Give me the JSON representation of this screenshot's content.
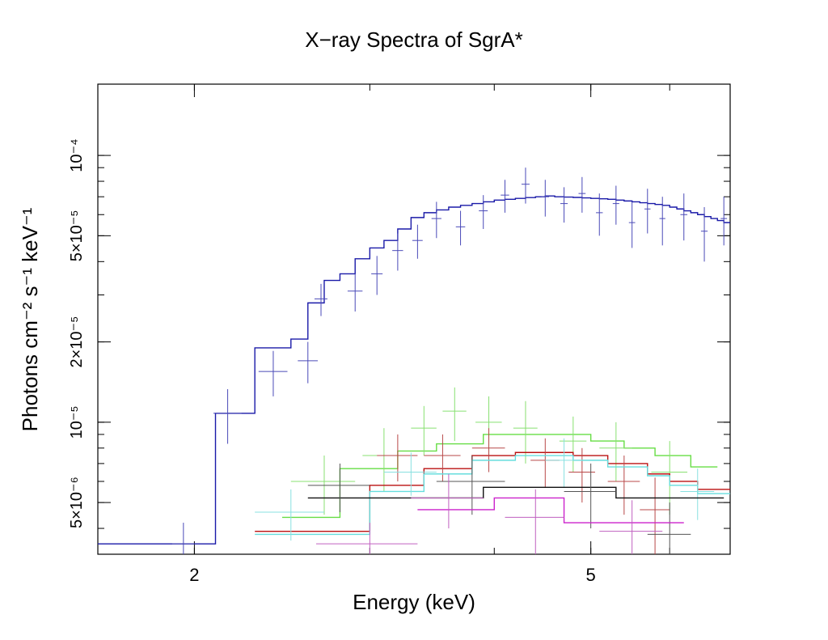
{
  "chart_data": {
    "type": "line",
    "title": "X−ray Spectra of SgrA*",
    "xlabel": "Energy (keV)",
    "ylabel": "Photons cm⁻² s⁻¹ keV⁻¹",
    "xscale": "log",
    "yscale": "log",
    "xlim": [
      1.6,
      6.9
    ],
    "ylim": [
      3.2e-06,
      0.000185
    ],
    "x_ticks": [
      {
        "value": 2,
        "label": "2"
      },
      {
        "value": 5,
        "label": "5"
      }
    ],
    "y_ticks": [
      {
        "value": 5e-06,
        "label": "5×10⁻⁶"
      },
      {
        "value": 1e-05,
        "label": "10⁻⁵"
      },
      {
        "value": 2e-05,
        "label": "2×10⁻⁵"
      },
      {
        "value": 5e-05,
        "label": "5×10⁻⁵"
      },
      {
        "value": 0.0001,
        "label": "10⁻⁴"
      }
    ],
    "grid": false,
    "legend": "none",
    "series": [
      {
        "name": "blue model",
        "kind": "step",
        "color": "#1a1aa8",
        "edges": [
          1.6,
          1.95,
          2.1,
          2.3,
          2.5,
          2.6,
          2.7,
          2.8,
          2.9,
          3.0,
          3.1,
          3.2,
          3.3,
          3.4,
          3.5,
          3.6,
          3.7,
          3.8,
          3.9,
          4.0,
          4.1,
          4.2,
          4.3,
          4.4,
          4.5,
          4.6,
          4.7,
          4.8,
          4.9,
          5.0,
          5.1,
          5.2,
          5.3,
          5.4,
          5.5,
          5.6,
          5.7,
          5.8,
          5.9,
          6.0,
          6.1,
          6.2,
          6.3,
          6.4,
          6.5,
          6.6,
          6.7,
          6.8,
          6.9
        ],
        "values": [
          3.5e-06,
          3.5e-06,
          1.08e-05,
          1.9e-05,
          2.05e-05,
          2.8e-05,
          3.4e-05,
          3.6e-05,
          4.1e-05,
          4.5e-05,
          4.8e-05,
          5.3e-05,
          5.85e-05,
          6.1e-05,
          6.25e-05,
          6.4e-05,
          6.5e-05,
          6.6e-05,
          6.7e-05,
          6.8e-05,
          6.85e-05,
          6.9e-05,
          6.95e-05,
          7e-05,
          7.05e-05,
          7e-05,
          6.98e-05,
          6.96e-05,
          6.93e-05,
          6.9e-05,
          6.88e-05,
          6.85e-05,
          6.8e-05,
          6.75e-05,
          6.7e-05,
          6.65e-05,
          6.6e-05,
          6.55e-05,
          6.5e-05,
          6.4e-05,
          6.3e-05,
          6.2e-05,
          6.1e-05,
          6e-05,
          5.9e-05,
          5.8e-05,
          5.7e-05,
          5.6e-05
        ]
      },
      {
        "name": "blue data",
        "kind": "errorbars",
        "color": "#4a4ab8",
        "points": [
          {
            "x": 1.95,
            "y": 3.5e-06,
            "xerr": 0.05,
            "yerr": 7e-07
          },
          {
            "x": 2.16,
            "y": 1.08e-05,
            "xerr": 0.07,
            "yerr": 2.5e-06
          },
          {
            "x": 2.4,
            "y": 1.55e-05,
            "xerr": 0.08,
            "yerr": 3e-06
          },
          {
            "x": 2.6,
            "y": 1.7e-05,
            "xerr": 0.06,
            "yerr": 3e-06
          },
          {
            "x": 2.68,
            "y": 2.9e-05,
            "xerr": 0.04,
            "yerr": 4e-06
          },
          {
            "x": 2.9,
            "y": 3.1e-05,
            "xerr": 0.05,
            "yerr": 5e-06
          },
          {
            "x": 3.05,
            "y": 3.6e-05,
            "xerr": 0.04,
            "yerr": 6e-06
          },
          {
            "x": 3.2,
            "y": 4.4e-05,
            "xerr": 0.04,
            "yerr": 7e-06
          },
          {
            "x": 3.35,
            "y": 4.8e-05,
            "xerr": 0.04,
            "yerr": 7e-06
          },
          {
            "x": 3.5,
            "y": 5.8e-05,
            "xerr": 0.04,
            "yerr": 9e-06
          },
          {
            "x": 3.7,
            "y": 5.4e-05,
            "xerr": 0.04,
            "yerr": 8e-06
          },
          {
            "x": 3.9,
            "y": 6.2e-05,
            "xerr": 0.04,
            "yerr": 9e-06
          },
          {
            "x": 4.1,
            "y": 7.1e-05,
            "xerr": 0.04,
            "yerr": 1e-05
          },
          {
            "x": 4.3,
            "y": 7.8e-05,
            "xerr": 0.04,
            "yerr": 1.2e-05
          },
          {
            "x": 4.5,
            "y": 7e-05,
            "xerr": 0.04,
            "yerr": 1.1e-05
          },
          {
            "x": 4.7,
            "y": 6.6e-05,
            "xerr": 0.04,
            "yerr": 1e-05
          },
          {
            "x": 4.9,
            "y": 7.2e-05,
            "xerr": 0.04,
            "yerr": 1.1e-05
          },
          {
            "x": 5.1,
            "y": 6.1e-05,
            "xerr": 0.04,
            "yerr": 1.1e-05
          },
          {
            "x": 5.3,
            "y": 6.6e-05,
            "xerr": 0.04,
            "yerr": 1.1e-05
          },
          {
            "x": 5.5,
            "y": 5.6e-05,
            "xerr": 0.04,
            "yerr": 1.1e-05
          },
          {
            "x": 5.7,
            "y": 6.3e-05,
            "xerr": 0.04,
            "yerr": 1.2e-05
          },
          {
            "x": 5.9,
            "y": 5.8e-05,
            "xerr": 0.04,
            "yerr": 1.2e-05
          },
          {
            "x": 6.2,
            "y": 6e-05,
            "xerr": 0.05,
            "yerr": 1.2e-05
          },
          {
            "x": 6.5,
            "y": 5.2e-05,
            "xerr": 0.05,
            "yerr": 1.2e-05
          },
          {
            "x": 6.8,
            "y": 5.8e-05,
            "xerr": 0.05,
            "yerr": 1.2e-05
          }
        ]
      },
      {
        "name": "green model",
        "kind": "step",
        "color": "#66dd44",
        "edges": [
          2.45,
          2.8,
          3.2,
          3.5,
          3.9,
          4.4,
          5.0,
          5.4,
          5.8,
          6.3,
          6.7
        ],
        "values": [
          4.4e-06,
          6.7e-06,
          7.8e-06,
          8.3e-06,
          9e-06,
          9e-06,
          8.5e-06,
          8e-06,
          7.5e-06,
          6.8e-06
        ]
      },
      {
        "name": "green data",
        "kind": "errorbars",
        "color": "#88e070",
        "points": [
          {
            "x": 2.7,
            "y": 6e-06,
            "xerr": 0.2,
            "yerr": 1.5e-06
          },
          {
            "x": 3.1,
            "y": 7.5e-06,
            "xerr": 0.15,
            "yerr": 2e-06
          },
          {
            "x": 3.4,
            "y": 9.5e-06,
            "xerr": 0.1,
            "yerr": 2e-06
          },
          {
            "x": 3.65,
            "y": 1.1e-05,
            "xerr": 0.1,
            "yerr": 2.5e-06
          },
          {
            "x": 3.95,
            "y": 1e-05,
            "xerr": 0.12,
            "yerr": 2.5e-06
          },
          {
            "x": 4.3,
            "y": 9.5e-06,
            "xerr": 0.12,
            "yerr": 2.5e-06
          },
          {
            "x": 4.8,
            "y": 8.5e-06,
            "xerr": 0.15,
            "yerr": 2e-06
          },
          {
            "x": 5.3,
            "y": 8e-06,
            "xerr": 0.2,
            "yerr": 2e-06
          },
          {
            "x": 6.0,
            "y": 6.5e-06,
            "xerr": 0.25,
            "yerr": 2e-06
          }
        ]
      },
      {
        "name": "red model",
        "kind": "step",
        "color": "#bb1111",
        "edges": [
          2.3,
          3.0,
          3.4,
          3.8,
          4.2,
          4.8,
          5.2,
          5.7,
          6.0,
          6.4,
          6.9
        ],
        "values": [
          3.9e-06,
          5.8e-06,
          6.7e-06,
          7.5e-06,
          7.7e-06,
          7.5e-06,
          7e-06,
          6.4e-06,
          6e-06,
          5.6e-06
        ]
      },
      {
        "name": "red data",
        "kind": "errorbars",
        "color": "#b84848",
        "points": [
          {
            "x": 3.2,
            "y": 7.5e-06,
            "xerr": 0.15,
            "yerr": 1.5e-06
          },
          {
            "x": 3.55,
            "y": 7.5e-06,
            "xerr": 0.15,
            "yerr": 1.5e-06
          },
          {
            "x": 3.95,
            "y": 8e-06,
            "xerr": 0.15,
            "yerr": 1.5e-06
          },
          {
            "x": 4.5,
            "y": 7.2e-06,
            "xerr": 0.15,
            "yerr": 1.5e-06
          },
          {
            "x": 4.9,
            "y": 6.5e-06,
            "xerr": 0.15,
            "yerr": 1.5e-06
          },
          {
            "x": 5.4,
            "y": 6e-06,
            "xerr": 0.2,
            "yerr": 1.5e-06
          },
          {
            "x": 5.8,
            "y": 4.7e-06,
            "xerr": 0.2,
            "yerr": 1.5e-06
          }
        ]
      },
      {
        "name": "cyan model",
        "kind": "step",
        "color": "#66dddd",
        "edges": [
          2.3,
          3.0,
          3.4,
          3.8,
          4.2,
          4.8,
          5.2,
          5.7,
          6.0,
          6.4,
          6.9
        ],
        "values": [
          3.8e-06,
          5.5e-06,
          6.4e-06,
          7.2e-06,
          7.5e-06,
          7.2e-06,
          6.8e-06,
          6.3e-06,
          5.8e-06,
          5.4e-06
        ]
      },
      {
        "name": "cyan data",
        "kind": "errorbars",
        "color": "#88e0e0",
        "points": [
          {
            "x": 2.5,
            "y": 4.6e-06,
            "xerr": 0.2,
            "yerr": 1e-06
          },
          {
            "x": 3.3,
            "y": 6.5e-06,
            "xerr": 0.2,
            "yerr": 1.2e-06
          },
          {
            "x": 4.7,
            "y": 7.2e-06,
            "xerr": 0.2,
            "yerr": 1.5e-06
          },
          {
            "x": 6.4,
            "y": 5.5e-06,
            "xerr": 0.25,
            "yerr": 1.2e-06
          }
        ]
      },
      {
        "name": "black model",
        "kind": "step",
        "color": "#111111",
        "edges": [
          2.6,
          3.9,
          5.3,
          6.8
        ],
        "values": [
          5.2e-06,
          5.7e-06,
          5.2e-06
        ]
      },
      {
        "name": "black data",
        "kind": "errorbars",
        "color": "#555555",
        "points": [
          {
            "x": 2.8,
            "y": 5.8e-06,
            "xerr": 0.2,
            "yerr": 1.2e-06
          },
          {
            "x": 3.8,
            "y": 6e-06,
            "xerr": 0.3,
            "yerr": 1.5e-06
          },
          {
            "x": 5.0,
            "y": 5.5e-06,
            "xerr": 0.3,
            "yerr": 1.5e-06
          },
          {
            "x": 6.0,
            "y": 3.8e-06,
            "xerr": 0.3,
            "yerr": 1.2e-06
          }
        ]
      },
      {
        "name": "magenta model",
        "kind": "step",
        "color": "#cc22cc",
        "edges": [
          3.35,
          4.0,
          4.7,
          6.2
        ],
        "values": [
          4.7e-06,
          5.2e-06,
          4.2e-06
        ]
      },
      {
        "name": "magenta data",
        "kind": "errorbars",
        "color": "#c060c0",
        "points": [
          {
            "x": 3.0,
            "y": 3.5e-06,
            "xerr": 0.35,
            "yerr": 7e-07
          },
          {
            "x": 3.6,
            "y": 5.2e-06,
            "xerr": 0.3,
            "yerr": 1.2e-06
          },
          {
            "x": 4.4,
            "y": 4.4e-06,
            "xerr": 0.3,
            "yerr": 1.2e-06
          },
          {
            "x": 5.5,
            "y": 3.9e-06,
            "xerr": 0.4,
            "yerr": 1.2e-06
          }
        ]
      }
    ]
  }
}
